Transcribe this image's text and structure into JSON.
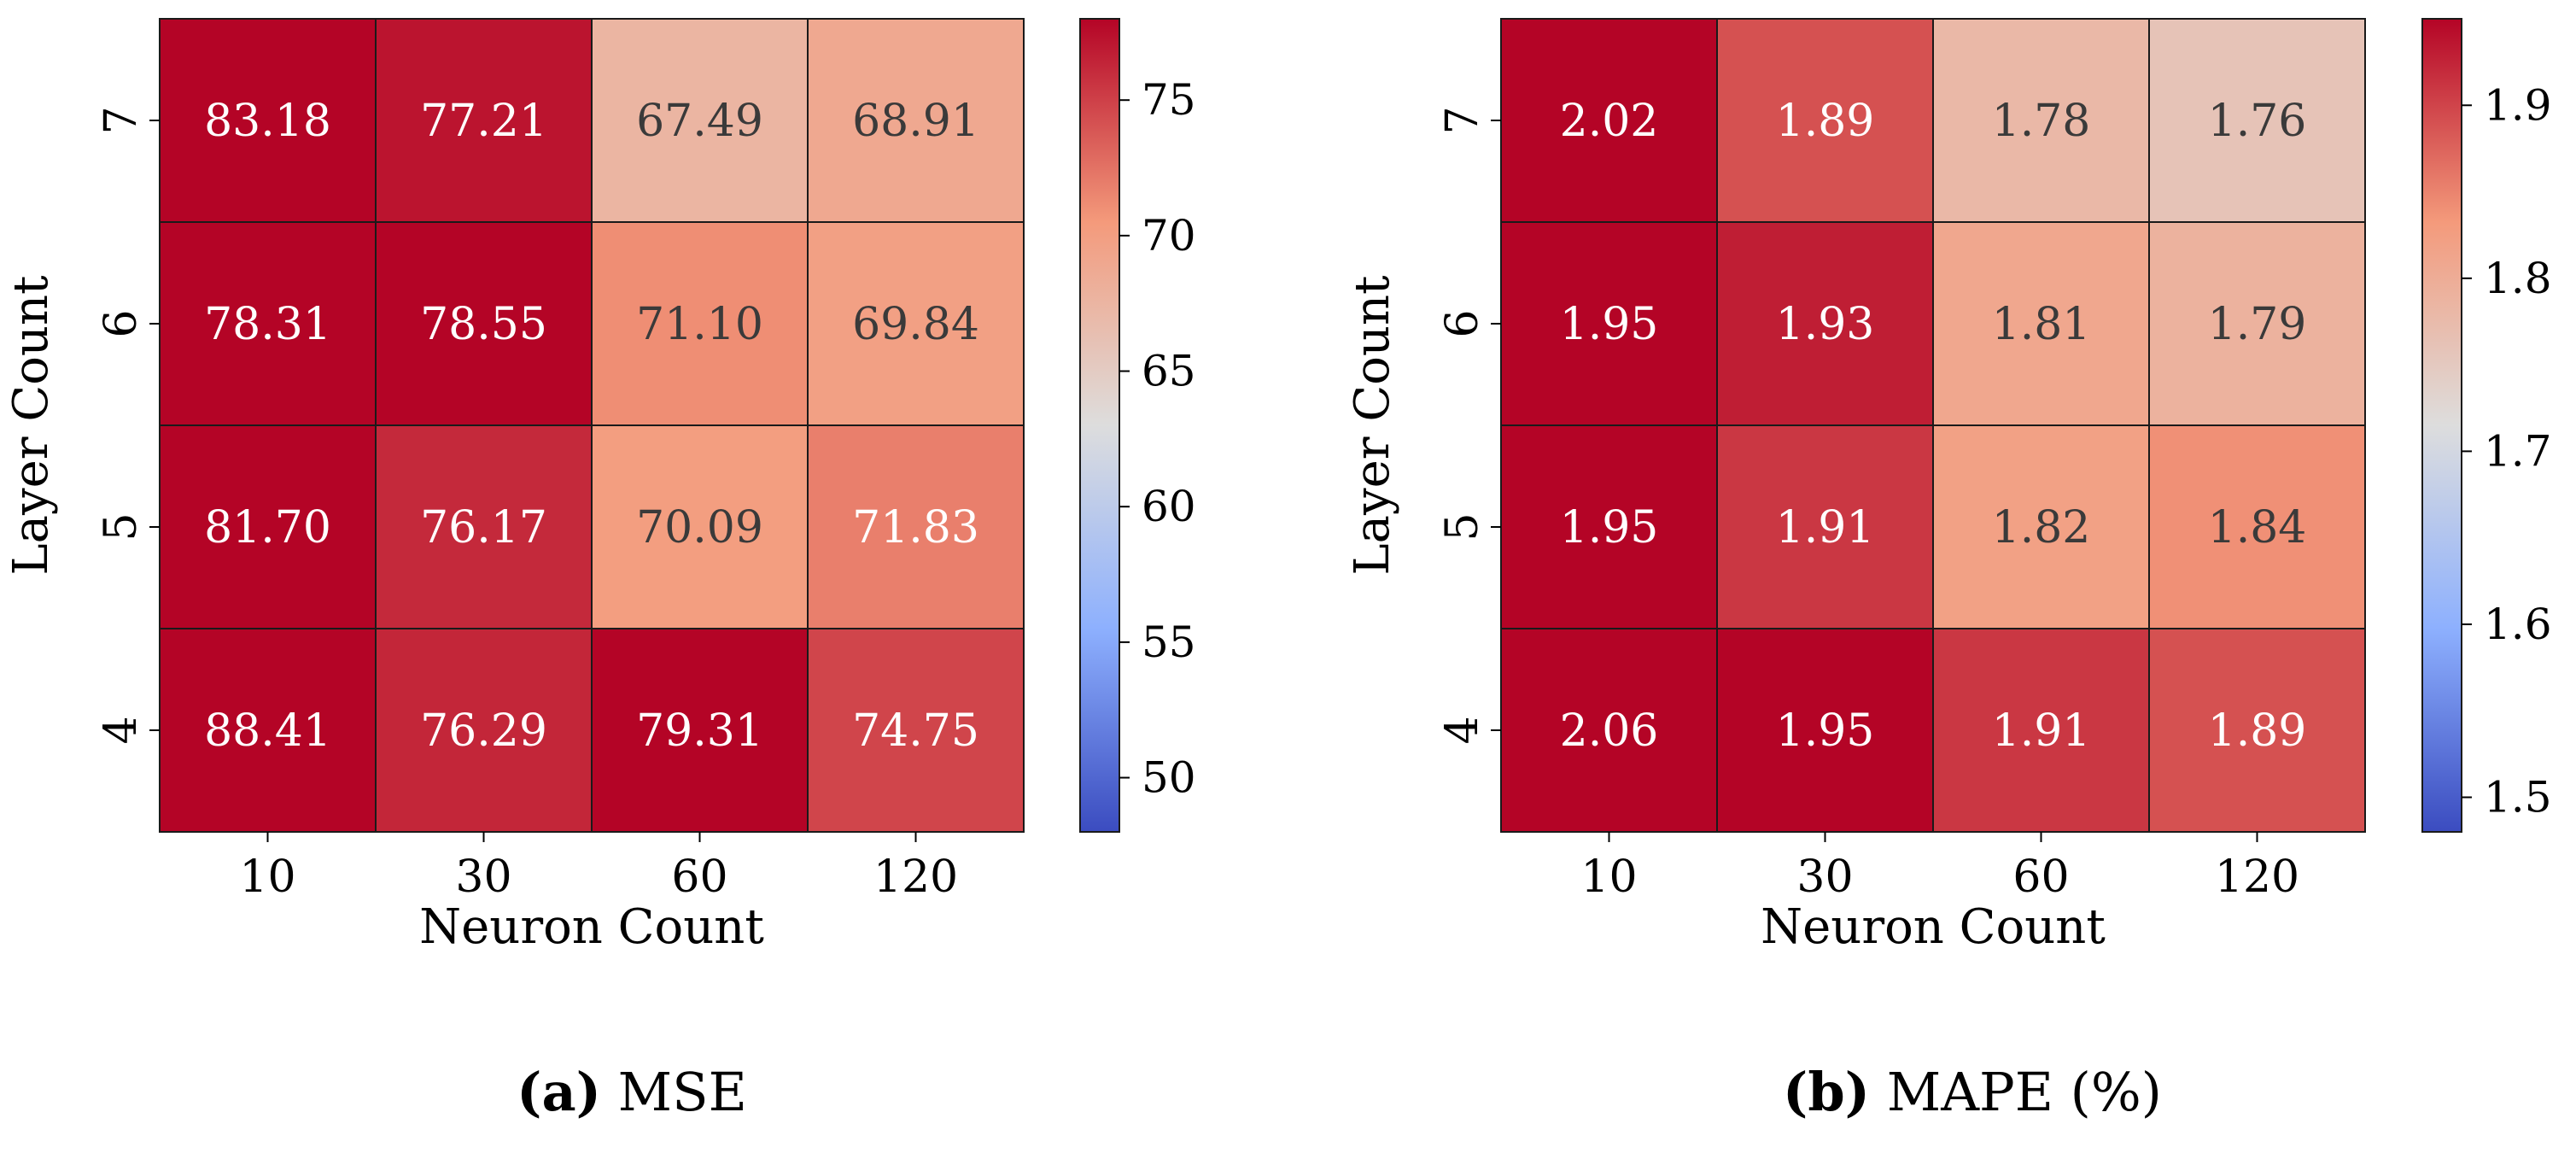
{
  "figure": {
    "panels": [
      {
        "letter": "(a)",
        "name": "MSE"
      },
      {
        "letter": "(b)",
        "name": "MAPE (%)"
      }
    ]
  },
  "chart_data": [
    {
      "type": "heatmap",
      "title": "MSE",
      "xlabel": "Neuron Count",
      "ylabel": "Layer Count",
      "x_categories": [
        "10",
        "30",
        "60",
        "120"
      ],
      "y_categories": [
        "7",
        "6",
        "5",
        "4"
      ],
      "values": [
        [
          83.18,
          77.21,
          67.49,
          68.91
        ],
        [
          78.31,
          78.55,
          71.1,
          69.84
        ],
        [
          81.7,
          76.17,
          70.09,
          71.83
        ],
        [
          88.41,
          76.29,
          79.31,
          74.75
        ]
      ],
      "value_format_decimals": 2,
      "colormap": "coolwarm",
      "colorbar": {
        "min": 48,
        "max": 78,
        "ticks": [
          50,
          55,
          60,
          65,
          70,
          75
        ]
      }
    },
    {
      "type": "heatmap",
      "title": "MAPE (%)",
      "xlabel": "Neuron Count",
      "ylabel": "Layer Count",
      "x_categories": [
        "10",
        "30",
        "60",
        "120"
      ],
      "y_categories": [
        "7",
        "6",
        "5",
        "4"
      ],
      "values": [
        [
          2.02,
          1.89,
          1.78,
          1.76
        ],
        [
          1.95,
          1.93,
          1.81,
          1.79
        ],
        [
          1.95,
          1.91,
          1.82,
          1.84
        ],
        [
          2.06,
          1.95,
          1.91,
          1.89
        ]
      ],
      "value_format_decimals": 2,
      "colormap": "coolwarm",
      "colorbar": {
        "min": 1.48,
        "max": 1.95,
        "ticks": [
          1.5,
          1.6,
          1.7,
          1.8,
          1.9
        ]
      }
    }
  ]
}
